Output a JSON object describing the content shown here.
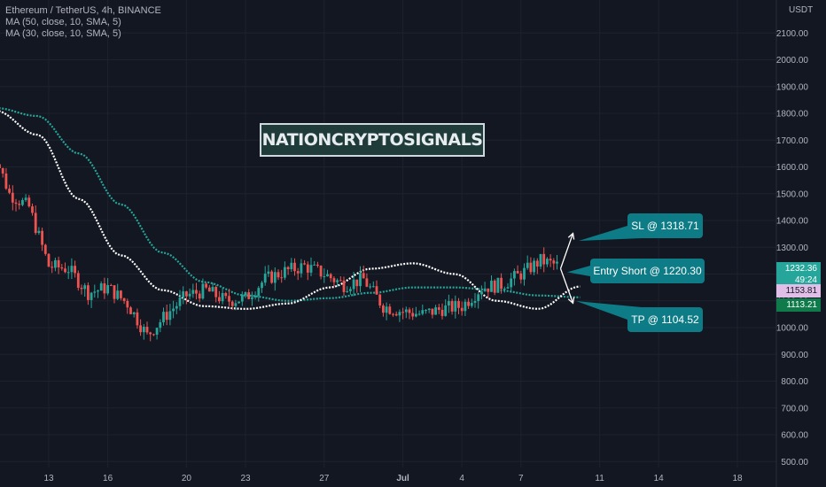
{
  "legend": {
    "title": "Ethereum / TetherUS, 4h, BINANCE",
    "ma50": "MA (50, close, 10, SMA, 5)",
    "ma30": "MA (30, close, 10, SMA, 5)"
  },
  "watermark": "NATIONCRYPTOSIGNALS",
  "price_unit": "USDT",
  "price_tags": {
    "current_price": "1232.36",
    "countdown": "49:24",
    "ma30_value": "1153.81",
    "ma50_value": "1113.21"
  },
  "colors": {
    "background": "#131722",
    "up_candle": "#26a69a",
    "down_candle": "#ef5350",
    "ma50_line": "#26a69a",
    "ma30_line": "#ffffff",
    "callout_bg": "#0e7c86",
    "ma30_tag": "#e1bee7"
  },
  "chart_data": {
    "type": "candlestick",
    "title": "Ethereum / TetherUS, 4h, BINANCE",
    "ylabel": "USDT",
    "ylim": [
      500,
      2300
    ],
    "y_ticks": [
      2100,
      2000,
      1900,
      1800,
      1700,
      1600,
      1500,
      1400,
      1300,
      1200,
      1100,
      1000,
      900,
      800,
      700,
      600,
      500
    ],
    "y_tick_labels": [
      "2100.00",
      "2000.00",
      "1900.00",
      "1800.00",
      "1700.00",
      "1600.00",
      "1500.00",
      "1400.00",
      "1300.00",
      "1200.00",
      "1100.00",
      "1000.00",
      "900.00",
      "800.00",
      "700.00",
      "600.00",
      "500.00"
    ],
    "x_ticks": [
      "13",
      "16",
      "20",
      "23",
      "27",
      "Jul",
      "4",
      "7",
      "11",
      "14",
      "18"
    ],
    "grid": true,
    "close_anchors": [
      {
        "t": "Jun 10",
        "close": 1700
      },
      {
        "t": "Jun 11",
        "close": 1500
      },
      {
        "t": "Jun 12",
        "close": 1450
      },
      {
        "t": "Jun 13",
        "close": 1230
      },
      {
        "t": "Jun 14",
        "close": 1220
      },
      {
        "t": "Jun 15",
        "close": 1130
      },
      {
        "t": "Jun 16",
        "close": 1150
      },
      {
        "t": "Jun 17",
        "close": 1090
      },
      {
        "t": "Jun 18",
        "close": 970
      },
      {
        "t": "Jun 19",
        "close": 1050
      },
      {
        "t": "Jun 20",
        "close": 1120
      },
      {
        "t": "Jun 21",
        "close": 1140
      },
      {
        "t": "Jun 22",
        "close": 1100
      },
      {
        "t": "Jun 23",
        "close": 1110
      },
      {
        "t": "Jun 24",
        "close": 1180
      },
      {
        "t": "Jun 25",
        "close": 1210
      },
      {
        "t": "Jun 26",
        "close": 1230
      },
      {
        "t": "Jun 27",
        "close": 1200
      },
      {
        "t": "Jun 28",
        "close": 1160
      },
      {
        "t": "Jun 29",
        "close": 1180
      },
      {
        "t": "Jun 30",
        "close": 1080
      },
      {
        "t": "Jul 1",
        "close": 1060
      },
      {
        "t": "Jul 2",
        "close": 1050
      },
      {
        "t": "Jul 3",
        "close": 1070
      },
      {
        "t": "Jul 4",
        "close": 1080
      },
      {
        "t": "Jul 5",
        "close": 1150
      },
      {
        "t": "Jul 6",
        "close": 1160
      },
      {
        "t": "Jul 7",
        "close": 1200
      },
      {
        "t": "Jul 8",
        "close": 1250
      },
      {
        "t": "Jul 8 20:00",
        "close": 1232.36
      }
    ],
    "series": [
      {
        "name": "MA (50, close, 10, SMA, 5)",
        "values_approx": [
          1820,
          1790,
          1650,
          1460,
          1280,
          1170,
          1120,
          1100,
          1110,
          1130,
          1150,
          1150,
          1140,
          1120,
          1113.21
        ]
      },
      {
        "name": "MA (30, close, 10, SMA, 5)",
        "values_approx": [
          1810,
          1720,
          1480,
          1270,
          1140,
          1080,
          1070,
          1090,
          1150,
          1220,
          1240,
          1200,
          1100,
          1070,
          1153.81
        ]
      }
    ],
    "annotations": [
      {
        "label": "SL @ 1318.71",
        "price": 1318.71
      },
      {
        "label": "Entry Short @ 1220.30",
        "price": 1220.3
      },
      {
        "label": "TP @ 1104.52",
        "price": 1104.52
      }
    ],
    "last_price": 1232.36
  }
}
